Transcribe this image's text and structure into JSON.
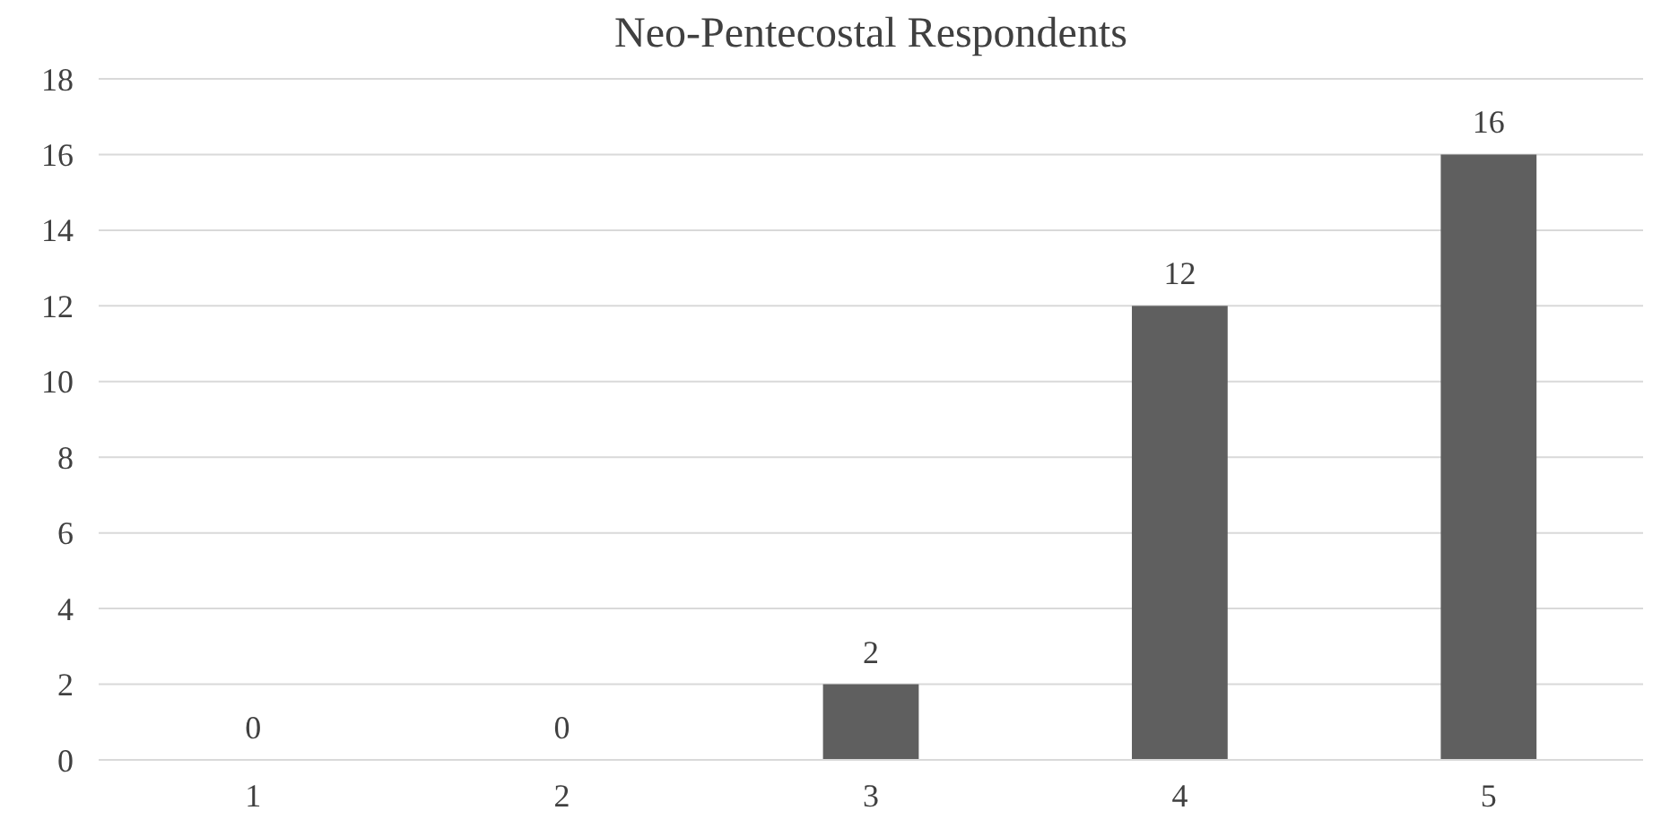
{
  "chart_data": {
    "type": "bar",
    "title": "Neo-Pentecostal Respondents",
    "categories": [
      "1",
      "2",
      "3",
      "4",
      "5"
    ],
    "values": [
      0,
      0,
      2,
      12,
      16
    ],
    "color": "#5f5f5f",
    "ylim": [
      0,
      18
    ],
    "yticks": [
      0,
      2,
      4,
      6,
      8,
      10,
      12,
      14,
      16,
      18
    ],
    "grid": "y",
    "data_labels": true
  }
}
